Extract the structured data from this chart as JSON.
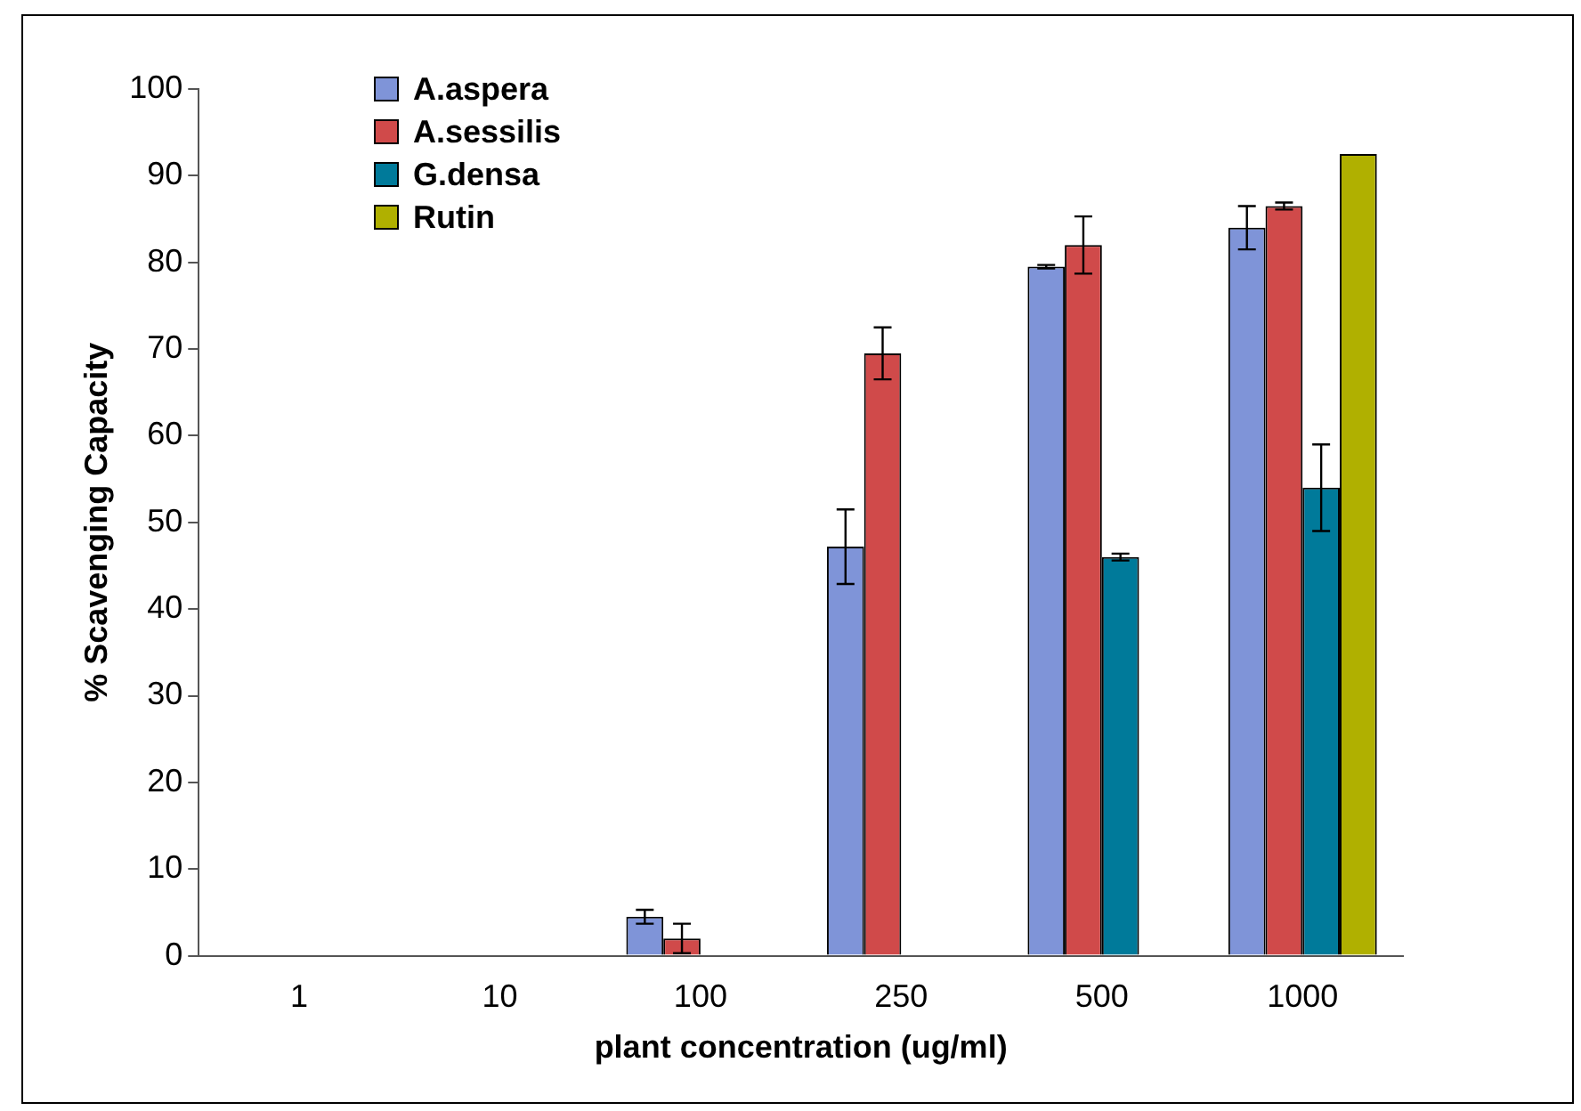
{
  "chart_data": {
    "type": "bar",
    "xlabel": "plant concentration (ug/ml)",
    "ylabel": "% Scavenging Capacity",
    "categories": [
      "1",
      "10",
      "100",
      "250",
      "500",
      "1000"
    ],
    "series": [
      {
        "name": "A.aspera",
        "color": "#7f94d8",
        "values": [
          0,
          0,
          4.5,
          47.2,
          79.5,
          84
        ],
        "errors": [
          null,
          null,
          0.8,
          4.3,
          0.2,
          2.5
        ]
      },
      {
        "name": "A.sessilis",
        "color": "#d04a4a",
        "values": [
          0,
          0,
          2,
          69.5,
          82,
          86.5
        ],
        "errors": [
          null,
          null,
          1.7,
          3,
          3.3,
          0.4
        ]
      },
      {
        "name": "G.densa",
        "color": "#007a9a",
        "values": [
          0,
          0,
          0,
          0,
          46,
          54
        ],
        "errors": [
          null,
          null,
          null,
          null,
          0.4,
          5
        ]
      },
      {
        "name": "Rutin",
        "color": "#b0b000",
        "values": [
          0,
          0,
          0,
          0,
          0,
          92.5
        ]
      }
    ],
    "ylim": [
      0,
      100
    ],
    "yticks": [
      0,
      10,
      20,
      30,
      40,
      50,
      60,
      70,
      80,
      90,
      100
    ],
    "grid": false,
    "legend": "top left"
  }
}
